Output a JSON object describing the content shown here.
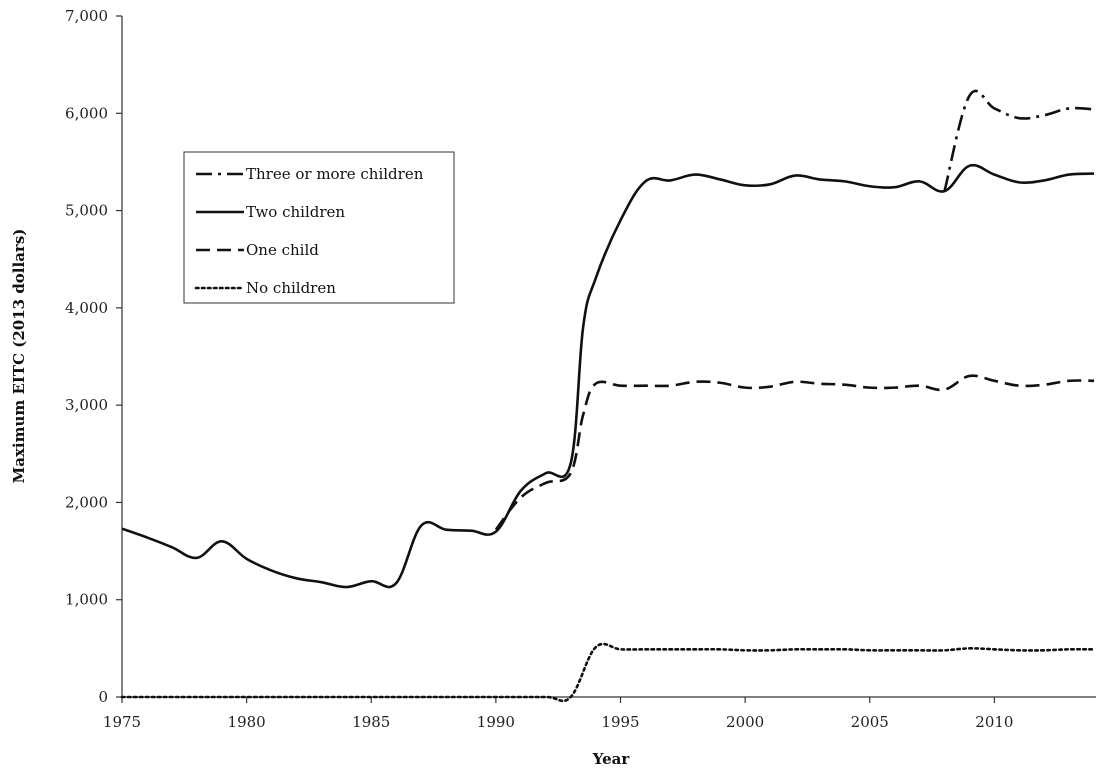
{
  "chart_data": {
    "type": "line",
    "title": "",
    "xlabel": "Year",
    "ylabel": "Maximum EITC (2013 dollars)",
    "xlim": [
      1975,
      2014
    ],
    "ylim": [
      0,
      7000
    ],
    "x_ticks": [
      1975,
      1980,
      1985,
      1990,
      1995,
      2000,
      2005,
      2010
    ],
    "x_tick_labels": [
      "1975",
      "1980",
      "1985",
      "1990",
      "1995",
      "2000",
      "2005",
      "2010"
    ],
    "y_ticks": [
      0,
      1000,
      2000,
      3000,
      4000,
      5000,
      6000,
      7000
    ],
    "y_tick_labels": [
      "0",
      "1,000",
      "2,000",
      "3,000",
      "4,000",
      "5,000",
      "6,000",
      "7,000"
    ],
    "grid": false,
    "legend_position": "upper-left",
    "series": [
      {
        "name": "Three or more children",
        "dash": "dashdot",
        "color": "#111111",
        "points": [
          [
            2008,
            5200
          ],
          [
            2009,
            6180
          ],
          [
            2010,
            6050
          ],
          [
            2011,
            5950
          ],
          [
            2012,
            5980
          ],
          [
            2013,
            6050
          ],
          [
            2014,
            6040
          ]
        ]
      },
      {
        "name": "Two children",
        "dash": "solid",
        "color": "#111111",
        "points": [
          [
            1975,
            1730
          ],
          [
            1976,
            1640
          ],
          [
            1977,
            1540
          ],
          [
            1978,
            1430
          ],
          [
            1979,
            1600
          ],
          [
            1980,
            1420
          ],
          [
            1981,
            1300
          ],
          [
            1982,
            1220
          ],
          [
            1983,
            1180
          ],
          [
            1984,
            1130
          ],
          [
            1985,
            1190
          ],
          [
            1986,
            1170
          ],
          [
            1987,
            1760
          ],
          [
            1988,
            1720
          ],
          [
            1989,
            1710
          ],
          [
            1990,
            1700
          ],
          [
            1991,
            2120
          ],
          [
            1992,
            2300
          ],
          [
            1993,
            2400
          ],
          [
            1993.5,
            3800
          ],
          [
            1994,
            4300
          ],
          [
            1995,
            4900
          ],
          [
            1996,
            5300
          ],
          [
            1997,
            5310
          ],
          [
            1998,
            5370
          ],
          [
            1999,
            5320
          ],
          [
            2000,
            5260
          ],
          [
            2001,
            5270
          ],
          [
            2002,
            5360
          ],
          [
            2003,
            5320
          ],
          [
            2004,
            5300
          ],
          [
            2005,
            5250
          ],
          [
            2006,
            5240
          ],
          [
            2007,
            5300
          ],
          [
            2008,
            5200
          ],
          [
            2009,
            5460
          ],
          [
            2010,
            5370
          ],
          [
            2011,
            5290
          ],
          [
            2012,
            5310
          ],
          [
            2013,
            5370
          ],
          [
            2014,
            5380
          ]
        ]
      },
      {
        "name": "One child",
        "dash": "dashed",
        "color": "#111111",
        "points": [
          [
            1990,
            1720
          ],
          [
            1991,
            2050
          ],
          [
            1992,
            2200
          ],
          [
            1993,
            2300
          ],
          [
            1993.5,
            2900
          ],
          [
            1994,
            3220
          ],
          [
            1995,
            3200
          ],
          [
            1996,
            3200
          ],
          [
            1997,
            3200
          ],
          [
            1998,
            3240
          ],
          [
            1999,
            3230
          ],
          [
            2000,
            3180
          ],
          [
            2001,
            3190
          ],
          [
            2002,
            3240
          ],
          [
            2003,
            3220
          ],
          [
            2004,
            3210
          ],
          [
            2005,
            3180
          ],
          [
            2006,
            3180
          ],
          [
            2007,
            3200
          ],
          [
            2008,
            3160
          ],
          [
            2009,
            3300
          ],
          [
            2010,
            3250
          ],
          [
            2011,
            3200
          ],
          [
            2012,
            3210
          ],
          [
            2013,
            3250
          ],
          [
            2014,
            3250
          ]
        ]
      },
      {
        "name": "No children",
        "dash": "dotted",
        "color": "#111111",
        "points": [
          [
            1975,
            0
          ],
          [
            1980,
            0
          ],
          [
            1985,
            0
          ],
          [
            1990,
            0
          ],
          [
            1992,
            0
          ],
          [
            1993,
            0
          ],
          [
            1994,
            510
          ],
          [
            1995,
            490
          ],
          [
            1996,
            490
          ],
          [
            1997,
            490
          ],
          [
            1998,
            490
          ],
          [
            1999,
            490
          ],
          [
            2000,
            480
          ],
          [
            2001,
            480
          ],
          [
            2002,
            490
          ],
          [
            2003,
            490
          ],
          [
            2004,
            490
          ],
          [
            2005,
            480
          ],
          [
            2006,
            480
          ],
          [
            2007,
            480
          ],
          [
            2008,
            480
          ],
          [
            2009,
            500
          ],
          [
            2010,
            490
          ],
          [
            2011,
            480
          ],
          [
            2012,
            480
          ],
          [
            2013,
            490
          ],
          [
            2014,
            490
          ]
        ]
      }
    ]
  }
}
